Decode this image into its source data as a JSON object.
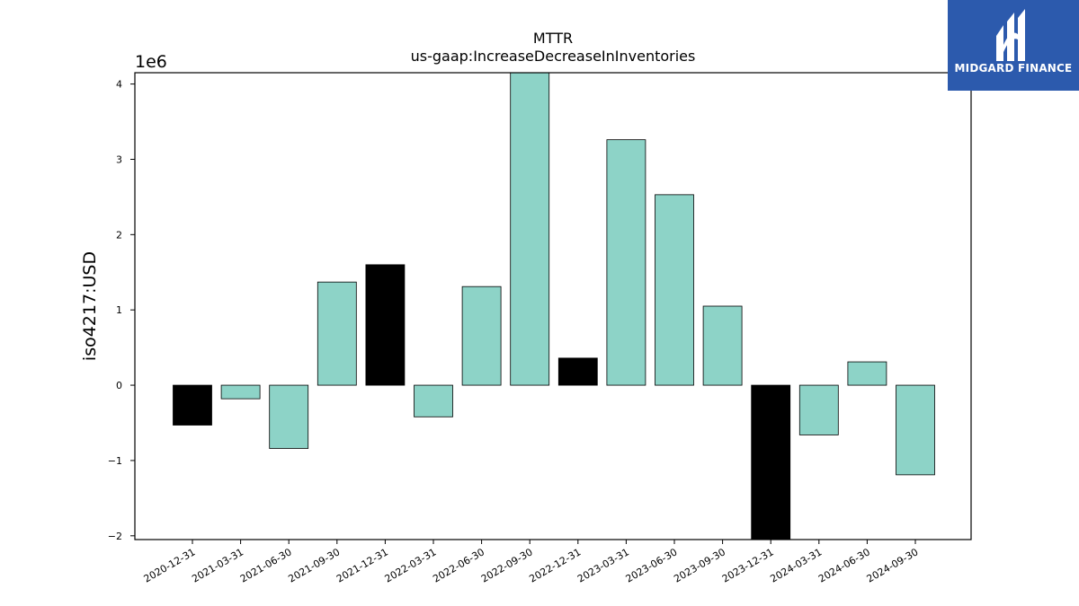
{
  "chart_data": {
    "type": "bar",
    "title": "MTTR",
    "subtitle": "us-gaap:IncreaseDecreaseInInventories",
    "ylabel": "iso4217:USD",
    "xlabel": "",
    "y_offset_text": "1e6",
    "ylim": [
      -2050000,
      4150000
    ],
    "yticks": [
      -2000000,
      -1000000,
      0,
      1000000,
      2000000,
      3000000,
      4000000
    ],
    "ytick_labels": [
      "−2",
      "−1",
      "0",
      "1",
      "2",
      "3",
      "4"
    ],
    "categories": [
      "2020-12-31",
      "2021-03-31",
      "2021-06-30",
      "2021-09-30",
      "2021-12-31",
      "2022-03-31",
      "2022-06-30",
      "2022-09-30",
      "2022-12-31",
      "2023-03-31",
      "2023-06-30",
      "2023-09-30",
      "2023-12-31",
      "2024-03-31",
      "2024-06-30",
      "2024-09-30"
    ],
    "values": [
      -530000,
      -180000,
      -840000,
      1370000,
      1600000,
      -420000,
      1310000,
      4200000,
      360000,
      3260000,
      2530000,
      1050000,
      -2100000,
      -660000,
      310000,
      -1190000
    ],
    "highlight": [
      true,
      false,
      false,
      false,
      true,
      false,
      false,
      false,
      true,
      false,
      false,
      false,
      true,
      false,
      false,
      false
    ],
    "colors": {
      "default": "#8dd3c7",
      "highlight": "#000000",
      "edge": "#000000"
    },
    "grid": false,
    "legend": "none"
  },
  "logo": {
    "text": "MIDGARD FINANCE"
  }
}
